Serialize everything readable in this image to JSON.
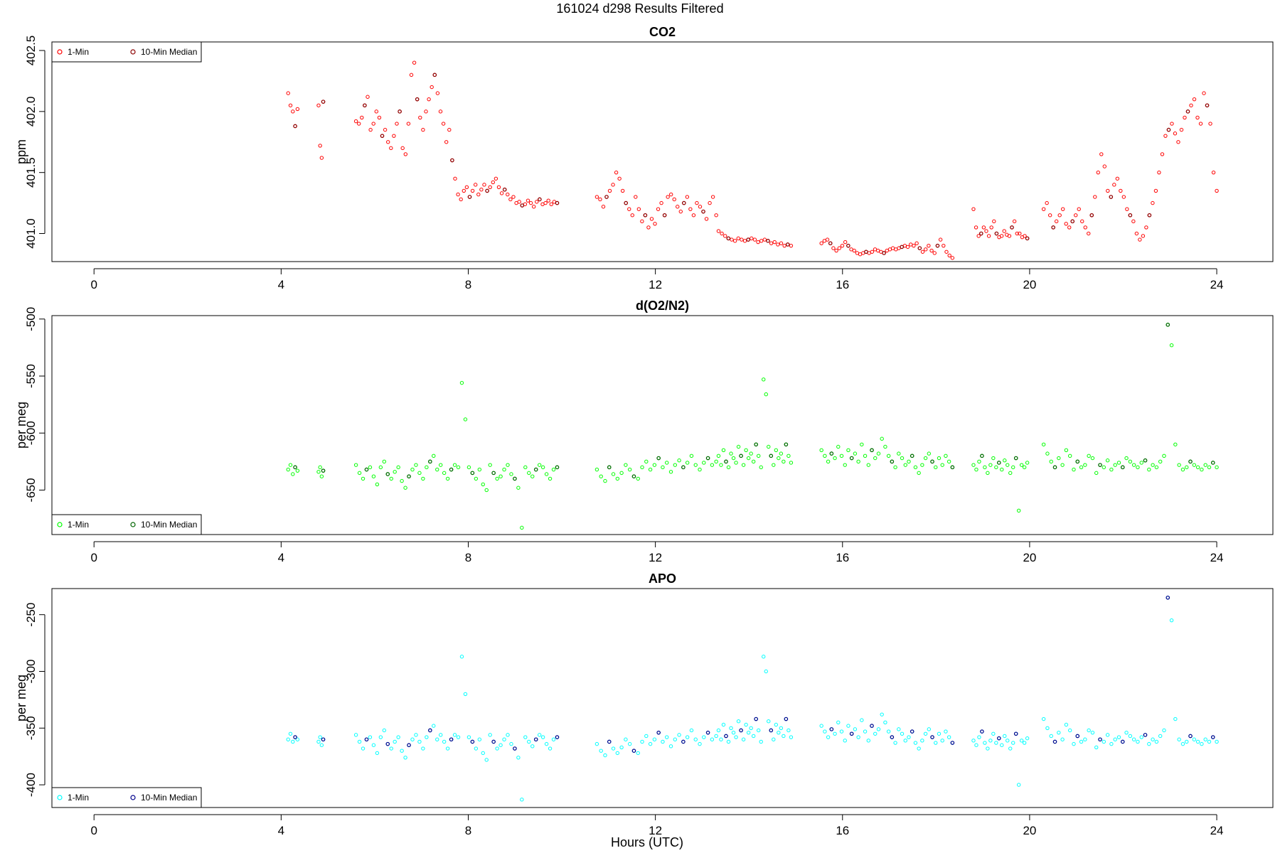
{
  "figure_title": "161024   d298   Results Filtered",
  "xlabel": "Hours (UTC)",
  "chart_data": [
    {
      "type": "scatter",
      "title": "CO2",
      "ylabel": "ppm",
      "xlim": [
        -0.9,
        25.2
      ],
      "ylim": [
        400.77,
        402.57
      ],
      "xticks": [
        0,
        4,
        8,
        12,
        16,
        20,
        24
      ],
      "yticks": [
        401.0,
        401.5,
        402.0,
        402.5
      ],
      "ytick_labels": [
        "401.0",
        "401.5",
        "402.0",
        "402.5"
      ],
      "legend_position": "top-left",
      "legend": [
        "1-Min",
        "10-Min Median"
      ],
      "colors": {
        "one_min": "#ff0000",
        "median": "#8b0000"
      },
      "segments": [
        {
          "x0": 4.15,
          "x1": 4.35,
          "values": [
            402.15,
            402.05,
            402.0,
            401.88,
            402.02
          ]
        },
        {
          "x0": 4.8,
          "x1": 4.9,
          "values": [
            402.05,
            401.72,
            401.62,
            402.08
          ]
        },
        {
          "x0": 5.6,
          "x1": 9.9,
          "values": [
            401.92,
            401.9,
            401.95,
            402.05,
            402.12,
            401.85,
            401.9,
            402.0,
            401.95,
            401.8,
            401.85,
            401.75,
            401.7,
            401.8,
            401.9,
            402.0,
            401.7,
            401.65,
            401.9,
            402.3,
            402.4,
            402.1,
            401.95,
            401.85,
            402.0,
            402.1,
            402.2,
            402.3,
            402.15,
            402.0,
            401.9,
            401.75,
            401.85,
            401.6,
            401.45,
            401.32,
            401.28,
            401.35,
            401.38,
            401.3,
            401.35,
            401.4,
            401.32,
            401.36,
            401.4,
            401.35,
            401.38,
            401.42,
            401.45,
            401.38,
            401.33,
            401.36,
            401.32,
            401.28,
            401.3,
            401.25,
            401.26,
            401.23,
            401.24,
            401.27,
            401.25,
            401.22,
            401.26,
            401.28,
            401.24,
            401.25,
            401.27,
            401.24,
            401.26,
            401.25
          ]
        },
        {
          "x0": 10.75,
          "x1": 13.3,
          "values": [
            401.3,
            401.28,
            401.22,
            401.3,
            401.35,
            401.4,
            401.5,
            401.45,
            401.35,
            401.25,
            401.2,
            401.15,
            401.3,
            401.2,
            401.1,
            401.15,
            401.05,
            401.12,
            401.08,
            401.2,
            401.25,
            401.15,
            401.3,
            401.32,
            401.28,
            401.22,
            401.18,
            401.25,
            401.3,
            401.2,
            401.15,
            401.25,
            401.22,
            401.18,
            401.12,
            401.25,
            401.3,
            401.15
          ]
        },
        {
          "x0": 13.35,
          "x1": 14.9,
          "values": [
            401.02,
            401.0,
            400.98,
            400.96,
            400.95,
            400.94,
            400.96,
            400.95,
            400.94,
            400.95,
            400.96,
            400.95,
            400.93,
            400.94,
            400.95,
            400.94,
            400.92,
            400.93,
            400.91,
            400.92,
            400.9,
            400.91,
            400.9
          ]
        },
        {
          "x0": 15.55,
          "x1": 18.35,
          "values": [
            400.92,
            400.94,
            400.95,
            400.92,
            400.88,
            400.86,
            400.88,
            400.9,
            400.93,
            400.9,
            400.87,
            400.86,
            400.84,
            400.83,
            400.84,
            400.85,
            400.84,
            400.85,
            400.87,
            400.86,
            400.85,
            400.84,
            400.86,
            400.87,
            400.88,
            400.87,
            400.88,
            400.89,
            400.9,
            400.89,
            400.91,
            400.9,
            400.92,
            400.88,
            400.85,
            400.87,
            400.9,
            400.86,
            400.84,
            400.9,
            400.95,
            400.9,
            400.85,
            400.82,
            400.8
          ]
        },
        {
          "x0": 18.8,
          "x1": 19.95,
          "values": [
            401.2,
            401.05,
            400.98,
            401.0,
            401.05,
            401.02,
            400.98,
            401.05,
            401.1,
            401.0,
            400.97,
            400.98,
            401.02,
            400.99,
            400.98,
            401.05,
            401.1,
            401.0,
            401.0,
            400.97,
            400.98,
            400.96
          ]
        },
        {
          "x0": 20.3,
          "x1": 24.0,
          "values": [
            401.2,
            401.25,
            401.15,
            401.05,
            401.1,
            401.15,
            401.2,
            401.08,
            401.05,
            401.1,
            401.15,
            401.2,
            401.1,
            401.05,
            401.0,
            401.15,
            401.3,
            401.5,
            401.65,
            401.55,
            401.35,
            401.3,
            401.4,
            401.45,
            401.35,
            401.3,
            401.2,
            401.15,
            401.1,
            401.0,
            400.95,
            400.98,
            401.05,
            401.15,
            401.25,
            401.35,
            401.5,
            401.65,
            401.8,
            401.85,
            401.9,
            401.82,
            401.75,
            401.85,
            401.95,
            402.0,
            402.05,
            402.1,
            401.95,
            401.9,
            402.15,
            402.05,
            401.9,
            401.5,
            401.35
          ]
        }
      ]
    },
    {
      "type": "scatter",
      "title": "d(O2/N2)",
      "ylabel": "per meg",
      "xlim": [
        -0.9,
        25.2
      ],
      "ylim": [
        -689,
        -497
      ],
      "xticks": [
        0,
        4,
        8,
        12,
        16,
        20,
        24
      ],
      "yticks": [
        -500,
        -550,
        -600,
        -650
      ],
      "ytick_labels": [
        "-500",
        "-550",
        "-600",
        "-650"
      ],
      "legend_position": "bottom-left",
      "legend": [
        "1-Min",
        "10-Min Median"
      ],
      "colors": {
        "one_min": "#00ff00",
        "median": "#006400"
      },
      "segments": [
        {
          "x0": 4.15,
          "x1": 4.35,
          "values": [
            -632,
            -628,
            -636,
            -630,
            -633
          ]
        },
        {
          "x0": 4.8,
          "x1": 4.9,
          "values": [
            -634,
            -630,
            -638,
            -633
          ]
        },
        {
          "x0": 5.6,
          "x1": 9.9,
          "values": [
            -628,
            -635,
            -640,
            -632,
            -630,
            -638,
            -645,
            -630,
            -625,
            -636,
            -640,
            -634,
            -630,
            -642,
            -648,
            -638,
            -632,
            -628,
            -635,
            -640,
            -630,
            -625,
            -620,
            -632,
            -628,
            -635,
            -640,
            -632,
            -628,
            -630,
            -556,
            -588,
            -630,
            -635,
            -640,
            -632,
            -645,
            -650,
            -628,
            -635,
            -640,
            -638,
            -632,
            -628,
            -636,
            -640,
            -648,
            -683,
            -630,
            -635,
            -638,
            -632,
            -628,
            -630,
            -636,
            -640,
            -632,
            -630
          ]
        },
        {
          "x0": 10.75,
          "x1": 13.3,
          "values": [
            -632,
            -638,
            -642,
            -630,
            -636,
            -640,
            -635,
            -628,
            -632,
            -638,
            -640,
            -630,
            -625,
            -632,
            -628,
            -622,
            -630,
            -626,
            -634,
            -628,
            -624,
            -630,
            -626,
            -620,
            -628,
            -632,
            -626,
            -622,
            -628,
            -625
          ]
        },
        {
          "x0": 13.35,
          "x1": 14.9,
          "values": [
            -620,
            -628,
            -615,
            -625,
            -630,
            -618,
            -622,
            -626,
            -612,
            -620,
            -628,
            -615,
            -622,
            -618,
            -625,
            -610,
            -620,
            -630,
            -553,
            -566,
            -612,
            -620,
            -628,
            -615,
            -622,
            -618,
            -625,
            -610,
            -620,
            -626
          ]
        },
        {
          "x0": 15.55,
          "x1": 18.35,
          "values": [
            -615,
            -620,
            -625,
            -618,
            -622,
            -612,
            -620,
            -628,
            -615,
            -622,
            -618,
            -625,
            -610,
            -620,
            -628,
            -615,
            -622,
            -618,
            -605,
            -612,
            -620,
            -625,
            -630,
            -618,
            -622,
            -628,
            -625,
            -620,
            -630,
            -635,
            -628,
            -622,
            -618,
            -625,
            -630,
            -622,
            -628,
            -620,
            -625,
            -630
          ]
        },
        {
          "x0": 18.8,
          "x1": 19.95,
          "values": [
            -628,
            -632,
            -625,
            -620,
            -630,
            -635,
            -628,
            -622,
            -630,
            -626,
            -632,
            -624,
            -628,
            -635,
            -630,
            -622,
            -668,
            -628,
            -630,
            -626
          ]
        },
        {
          "x0": 20.3,
          "x1": 24.0,
          "values": [
            -610,
            -618,
            -625,
            -630,
            -622,
            -628,
            -615,
            -620,
            -632,
            -625,
            -630,
            -628,
            -620,
            -622,
            -635,
            -628,
            -630,
            -624,
            -632,
            -628,
            -626,
            -630,
            -622,
            -625,
            -628,
            -630,
            -626,
            -624,
            -632,
            -628,
            -630,
            -625,
            -620,
            -505,
            -523,
            -610,
            -628,
            -632,
            -630,
            -625,
            -628,
            -630,
            -632,
            -628,
            -630,
            -626,
            -630
          ]
        }
      ]
    },
    {
      "type": "scatter",
      "title": "APO",
      "ylabel": "per meg",
      "xlim": [
        -0.9,
        25.2
      ],
      "ylim": [
        -420,
        -227
      ],
      "xticks": [
        0,
        4,
        8,
        12,
        16,
        20,
        24
      ],
      "yticks": [
        -250,
        -300,
        -350,
        -400
      ],
      "ytick_labels": [
        "-250",
        "-300",
        "-350",
        "-400"
      ],
      "legend_position": "bottom-left",
      "legend": [
        "1-Min",
        "10-Min Median"
      ],
      "colors": {
        "one_min": "#00ffff",
        "median": "#00008b"
      },
      "segments": [
        {
          "x0": 4.15,
          "x1": 4.35,
          "values": [
            -360,
            -355,
            -362,
            -358,
            -360
          ]
        },
        {
          "x0": 4.8,
          "x1": 4.9,
          "values": [
            -362,
            -358,
            -365,
            -360
          ]
        },
        {
          "x0": 5.6,
          "x1": 9.9,
          "values": [
            -356,
            -362,
            -368,
            -360,
            -358,
            -365,
            -372,
            -358,
            -352,
            -364,
            -368,
            -362,
            -358,
            -370,
            -376,
            -365,
            -360,
            -356,
            -362,
            -368,
            -358,
            -352,
            -348,
            -360,
            -356,
            -362,
            -368,
            -360,
            -356,
            -358,
            -287,
            -320,
            -358,
            -362,
            -368,
            -360,
            -372,
            -378,
            -356,
            -362,
            -368,
            -365,
            -360,
            -356,
            -364,
            -368,
            -376,
            -413,
            -358,
            -362,
            -366,
            -360,
            -356,
            -358,
            -364,
            -368,
            -360,
            -358
          ]
        },
        {
          "x0": 10.75,
          "x1": 13.3,
          "values": [
            -364,
            -370,
            -374,
            -362,
            -368,
            -372,
            -367,
            -360,
            -364,
            -370,
            -372,
            -362,
            -357,
            -364,
            -360,
            -354,
            -362,
            -358,
            -366,
            -360,
            -356,
            -362,
            -358,
            -352,
            -360,
            -364,
            -358,
            -354,
            -360,
            -357
          ]
        },
        {
          "x0": 13.35,
          "x1": 14.9,
          "values": [
            -352,
            -360,
            -347,
            -357,
            -362,
            -350,
            -354,
            -358,
            -344,
            -352,
            -360,
            -347,
            -354,
            -350,
            -357,
            -342,
            -352,
            -362,
            -287,
            -300,
            -344,
            -352,
            -360,
            -347,
            -354,
            -350,
            -357,
            -342,
            -352,
            -358
          ]
        },
        {
          "x0": 15.55,
          "x1": 18.35,
          "values": [
            -348,
            -353,
            -358,
            -351,
            -355,
            -345,
            -353,
            -361,
            -348,
            -355,
            -351,
            -358,
            -343,
            -353,
            -361,
            -348,
            -355,
            -351,
            -338,
            -345,
            -353,
            -358,
            -363,
            -351,
            -355,
            -361,
            -358,
            -353,
            -363,
            -368,
            -361,
            -355,
            -351,
            -358,
            -363,
            -355,
            -361,
            -353,
            -358,
            -363
          ]
        },
        {
          "x0": 18.8,
          "x1": 19.95,
          "values": [
            -361,
            -365,
            -358,
            -353,
            -363,
            -368,
            -361,
            -355,
            -363,
            -359,
            -365,
            -357,
            -361,
            -368,
            -363,
            -355,
            -400,
            -361,
            -363,
            -359
          ]
        },
        {
          "x0": 20.3,
          "x1": 24.0,
          "values": [
            -342,
            -350,
            -357,
            -362,
            -354,
            -360,
            -347,
            -352,
            -364,
            -357,
            -362,
            -360,
            -352,
            -354,
            -367,
            -360,
            -362,
            -356,
            -364,
            -360,
            -358,
            -362,
            -354,
            -357,
            -360,
            -362,
            -358,
            -356,
            -364,
            -360,
            -362,
            -357,
            -352,
            -235,
            -255,
            -342,
            -360,
            -364,
            -362,
            -357,
            -360,
            -362,
            -364,
            -360,
            -362,
            -358,
            -362
          ]
        }
      ]
    }
  ]
}
